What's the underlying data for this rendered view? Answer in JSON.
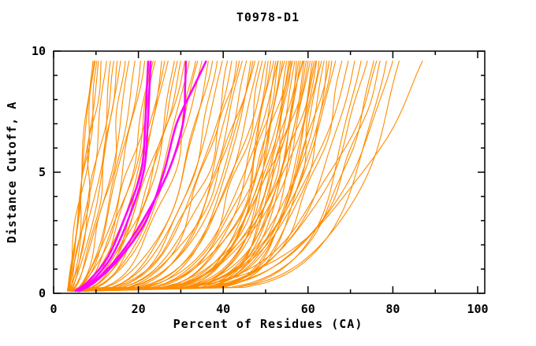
{
  "title": "T0978-D1",
  "axes": {
    "x_label": "Percent of Residues (CA)",
    "y_label": "Distance Cutoff, A",
    "x_ticks": [
      0,
      20,
      40,
      60,
      80,
      100
    ],
    "x_minor_step": 10,
    "y_ticks": [
      0,
      5,
      10
    ],
    "y_minor_step": 1,
    "xlim": [
      0,
      101.7
    ],
    "ylim": [
      0,
      10
    ]
  },
  "colors": {
    "curve_orange": "#FF8C00",
    "curve_magenta": "#FF00FF",
    "axis": "#000000",
    "background": "#FFFFFF"
  },
  "chart_data": {
    "type": "line",
    "title": "T0978-D1",
    "xlabel": "Percent of Residues (CA)",
    "ylabel": "Distance Cutoff, A",
    "xlim": [
      0,
      101.7
    ],
    "ylim": [
      0,
      10
    ],
    "grid": false,
    "legend": "none",
    "note": "Model-accuracy curves: percent of CA residues (x) under distance cutoff (y). Orange = model pool, magenta = highlighted models. Orange curves encoded as [x_at_bottom, x_at_top, shape_exponent_k] with x(y)=x0+(xe-x0)*u^k, u=(y-0.08)/9.52, curves span cutoff 0.08..9.6.",
    "start_cutoff": 0.08,
    "end_cutoff": 9.6,
    "orange_curves": [
      [
        3.2,
        9.3,
        0.85
      ],
      [
        3.5,
        9.8,
        0.9
      ],
      [
        3.6,
        10.2,
        0.8
      ],
      [
        3.4,
        10.6,
        0.95
      ],
      [
        3.8,
        11.2,
        0.75
      ],
      [
        3.3,
        9.6,
        1.0
      ],
      [
        3.5,
        12.5,
        0.7
      ],
      [
        3.9,
        13.4,
        0.62
      ],
      [
        3.4,
        14.2,
        0.75
      ],
      [
        4.0,
        15.0,
        0.55
      ],
      [
        3.6,
        15.8,
        0.68
      ],
      [
        4.2,
        16.9,
        0.5
      ],
      [
        3.7,
        17.8,
        0.6
      ],
      [
        4.1,
        19.2,
        0.52
      ],
      [
        4.0,
        20.5,
        0.5
      ],
      [
        4.2,
        21.5,
        0.55
      ],
      [
        4.3,
        22.8,
        0.42
      ],
      [
        4.6,
        23.5,
        0.5
      ],
      [
        3.8,
        24.0,
        0.55
      ],
      [
        4.5,
        25.5,
        0.38
      ],
      [
        4.3,
        26.2,
        0.52
      ],
      [
        4.0,
        27.0,
        0.45
      ],
      [
        4.6,
        28.5,
        0.35
      ],
      [
        4.8,
        29.2,
        0.42
      ],
      [
        3.9,
        30.0,
        0.48
      ],
      [
        4.1,
        31.0,
        0.5
      ],
      [
        4.4,
        32.0,
        0.4
      ],
      [
        4.1,
        33.5,
        0.33
      ],
      [
        4.5,
        34.0,
        0.47
      ],
      [
        4.7,
        35.0,
        0.44
      ],
      [
        4.2,
        36.5,
        0.3
      ],
      [
        4.8,
        37.5,
        0.36
      ],
      [
        4.0,
        38.6,
        0.28
      ],
      [
        4.5,
        39.8,
        0.33
      ],
      [
        5.0,
        41.0,
        0.26
      ],
      [
        4.3,
        42.0,
        0.31
      ],
      [
        4.9,
        43.2,
        0.24
      ],
      [
        4.5,
        43.8,
        0.35
      ],
      [
        4.1,
        44.5,
        0.3
      ],
      [
        4.6,
        45.5,
        0.27
      ],
      [
        5.1,
        46.5,
        0.22
      ],
      [
        4.8,
        47.0,
        0.32
      ],
      [
        4.4,
        47.5,
        0.29
      ],
      [
        5.0,
        48.4,
        0.25
      ],
      [
        4.2,
        49.2,
        0.21
      ],
      [
        4.7,
        50.0,
        0.27
      ],
      [
        4.0,
        50.6,
        0.18
      ],
      [
        4.6,
        51.2,
        0.14
      ],
      [
        5.0,
        51.9,
        0.22
      ],
      [
        4.2,
        52.4,
        0.16
      ],
      [
        4.35,
        52.9,
        0.26
      ],
      [
        4.8,
        53.0,
        0.2
      ],
      [
        4.4,
        53.5,
        0.13
      ],
      [
        5.2,
        54.0,
        0.17
      ],
      [
        4.1,
        54.5,
        0.24
      ],
      [
        4.7,
        55.0,
        0.15
      ],
      [
        5.0,
        55.5,
        0.19
      ],
      [
        4.75,
        55.8,
        0.25
      ],
      [
        4.3,
        56.0,
        0.12
      ],
      [
        4.9,
        56.4,
        0.21
      ],
      [
        4.5,
        56.9,
        0.16
      ],
      [
        5.3,
        57.3,
        0.14
      ],
      [
        4.2,
        57.8,
        0.2
      ],
      [
        4.8,
        58.2,
        0.13
      ],
      [
        4.4,
        58.7,
        0.18
      ],
      [
        5.1,
        58.9,
        0.24
      ],
      [
        5.1,
        59.1,
        0.15
      ],
      [
        4.6,
        59.6,
        0.22
      ],
      [
        4.3,
        60.0,
        0.14
      ],
      [
        5.0,
        60.5,
        0.17
      ],
      [
        4.7,
        61.0,
        0.12
      ],
      [
        4.4,
        61.5,
        0.19
      ],
      [
        4.55,
        61.9,
        0.23
      ],
      [
        5.2,
        62.0,
        0.15
      ],
      [
        4.8,
        62.6,
        0.13
      ],
      [
        4.5,
        63.2,
        0.18
      ],
      [
        5.0,
        63.8,
        0.16
      ],
      [
        4.6,
        64.4,
        0.13
      ],
      [
        5.3,
        65.0,
        0.2
      ],
      [
        4.9,
        65.6,
        0.15
      ],
      [
        4.6,
        66.5,
        0.2
      ],
      [
        5.0,
        68.0,
        0.16
      ],
      [
        4.8,
        69.5,
        0.22
      ],
      [
        5.2,
        71.0,
        0.18
      ],
      [
        4.7,
        72.5,
        0.14
      ],
      [
        5.1,
        74.0,
        0.2
      ],
      [
        4.9,
        75.5,
        0.16
      ],
      [
        5.4,
        76.2,
        0.24
      ],
      [
        5.3,
        77.0,
        0.19
      ],
      [
        5.0,
        78.5,
        0.15
      ],
      [
        5.2,
        80.0,
        0.21
      ],
      [
        4.8,
        81.5,
        0.17
      ],
      [
        5.5,
        87.0,
        0.28
      ]
    ],
    "magenta_cutoffs": [
      0.08,
      0.5,
      1.5,
      3,
      5,
      7,
      8.5,
      9.6
    ],
    "magenta_curves": [
      [
        5.0,
        8.2,
        12.8,
        16.5,
        20.6,
        21.6,
        22.0,
        22.3
      ],
      [
        5.5,
        9.0,
        13.6,
        17.5,
        21.2,
        22.2,
        22.6,
        22.9
      ],
      [
        5.8,
        9.6,
        15.2,
        21.0,
        27.0,
        30.5,
        31.0,
        31.2
      ],
      [
        6.0,
        10.0,
        15.8,
        21.8,
        26.0,
        29.0,
        33.0,
        36.0
      ]
    ]
  }
}
